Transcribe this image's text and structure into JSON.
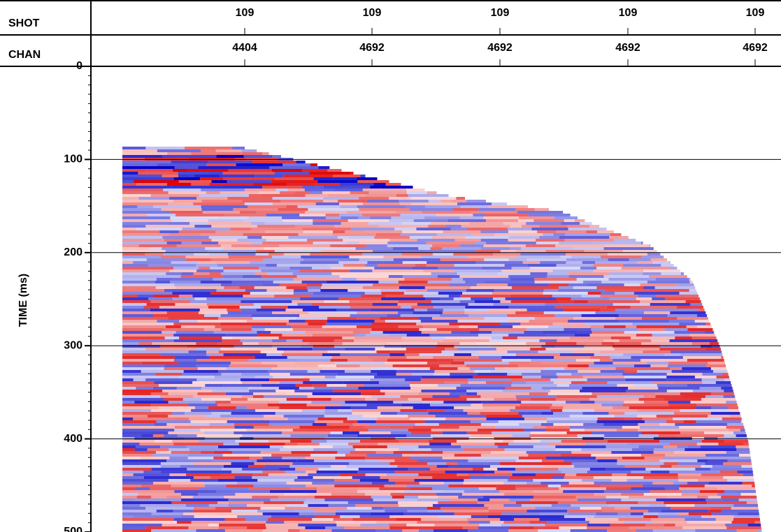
{
  "chart_data": {
    "type": "seismic",
    "header_rows": [
      {
        "label": "SHOT",
        "values": [
          109,
          109,
          109,
          109,
          109
        ]
      },
      {
        "label": "CHAN",
        "values": [
          4404,
          4692,
          4692,
          4692,
          4692
        ]
      }
    ],
    "ylabel": "TIME (ms)",
    "ylim": [
      0,
      500
    ],
    "yticks": [
      0,
      100,
      200,
      300,
      400,
      500
    ],
    "grid": true
  }
}
